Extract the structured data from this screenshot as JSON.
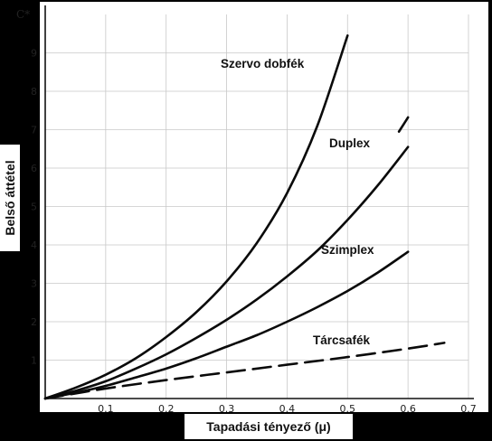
{
  "chart_data": {
    "type": "line",
    "title": "",
    "xlabel": "Tapadási tényező (μ)",
    "ylabel": "Belső áttétel",
    "y_corner_label": "C*",
    "xlim": [
      0,
      0.7
    ],
    "ylim": [
      0,
      10
    ],
    "x_ticks": [
      "0.1",
      "0.2",
      "0.3",
      "0.4",
      "0.5",
      "0.6",
      "0.7"
    ],
    "y_ticks": [
      "1",
      "2",
      "3",
      "4",
      "5",
      "6",
      "7",
      "8",
      "9"
    ],
    "grid": true,
    "series": [
      {
        "name": "Szervo dobfék",
        "style": "solid",
        "x": [
          0,
          0.05,
          0.1,
          0.15,
          0.2,
          0.25,
          0.3,
          0.35,
          0.4,
          0.45,
          0.5
        ],
        "y": [
          0,
          0.28,
          0.62,
          1.05,
          1.6,
          2.25,
          3.05,
          4.05,
          5.35,
          7.1,
          9.45
        ]
      },
      {
        "name": "Duplex",
        "style": "solid",
        "x": [
          0,
          0.05,
          0.1,
          0.15,
          0.2,
          0.25,
          0.3,
          0.35,
          0.4,
          0.45,
          0.5,
          0.55,
          0.6
        ],
        "y": [
          0,
          0.2,
          0.45,
          0.78,
          1.15,
          1.58,
          2.05,
          2.58,
          3.18,
          3.85,
          4.65,
          5.55,
          6.55
        ]
      },
      {
        "name": "Duplex (upper segment)",
        "style": "solid",
        "x": [
          0.585,
          0.6
        ],
        "y": [
          6.95,
          7.32
        ]
      },
      {
        "name": "Szimplex",
        "style": "solid",
        "x": [
          0,
          0.05,
          0.1,
          0.15,
          0.2,
          0.25,
          0.3,
          0.35,
          0.4,
          0.45,
          0.5,
          0.55,
          0.6
        ],
        "y": [
          0,
          0.15,
          0.33,
          0.55,
          0.78,
          1.05,
          1.35,
          1.65,
          2.0,
          2.38,
          2.8,
          3.28,
          3.82
        ]
      },
      {
        "name": "Tárcsafék",
        "style": "dashed",
        "x": [
          0,
          0.1,
          0.2,
          0.3,
          0.4,
          0.5,
          0.6,
          0.66
        ],
        "y": [
          0,
          0.26,
          0.48,
          0.68,
          0.88,
          1.08,
          1.3,
          1.45
        ]
      }
    ]
  }
}
